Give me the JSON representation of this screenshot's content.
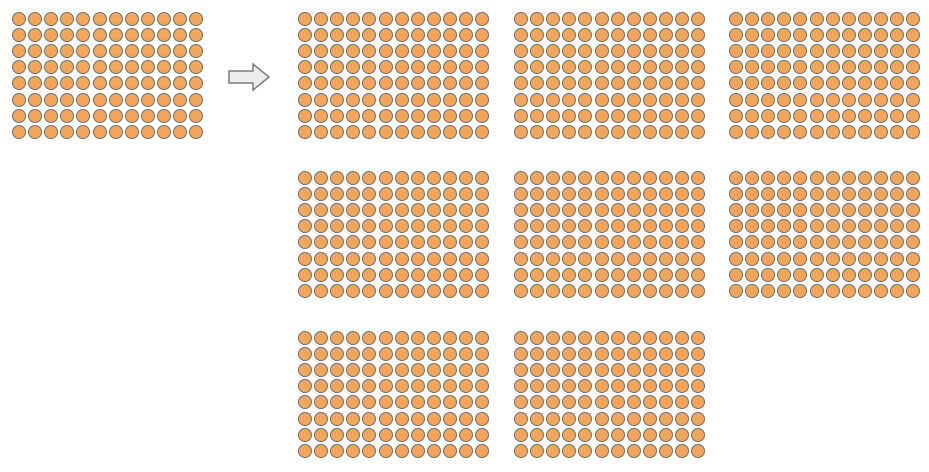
{
  "diagram": {
    "source_plate": {
      "rows": 8,
      "columns": 12,
      "well_color": "#F4A55C",
      "well_outline_color": "#6F6F6F"
    },
    "transfer_arrow": {
      "icon": "right-arrow-icon",
      "fill_color": "#EDEDED",
      "outline_color": "#7A7A7A"
    },
    "target_plates": {
      "count": 8,
      "rows": 8,
      "columns": 12,
      "well_color": "#F4A55C",
      "well_outline_color": "#6F6F6F"
    }
  }
}
